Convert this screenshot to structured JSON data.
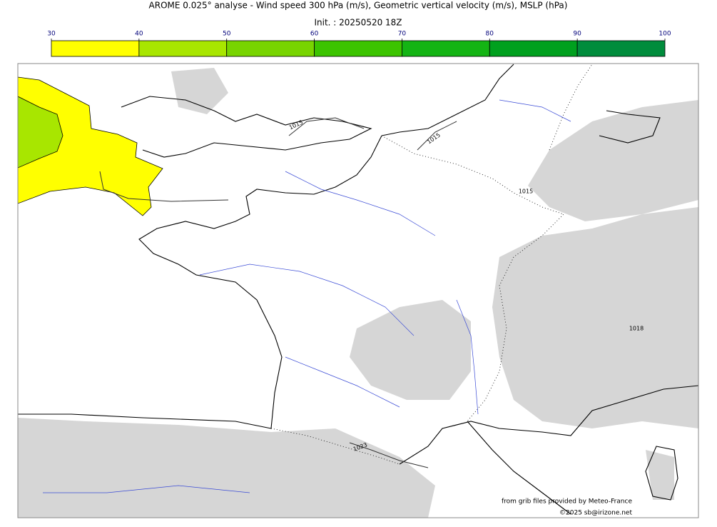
{
  "header": {
    "title": "AROME 0.025° analyse - Wind speed 300 hPa (m/s), Geometric vertical velocity (m/s), MSLP (hPa)",
    "init": "Init. : 20250520 18Z"
  },
  "colorbar": {
    "ticks": [
      30,
      40,
      50,
      60,
      70,
      80,
      90,
      100
    ],
    "colors": [
      "#ffff00",
      "#a8e600",
      "#78d400",
      "#3cc400",
      "#14b414",
      "#00a01e",
      "#008c3c",
      "#007850"
    ]
  },
  "map": {
    "isobar_labels": [
      "1015",
      "1015",
      "1015",
      "1018",
      "1023"
    ]
  },
  "footer": {
    "source": "from grib files provided by Meteo-France",
    "copyright": "©2025 sb@irizone.net"
  }
}
